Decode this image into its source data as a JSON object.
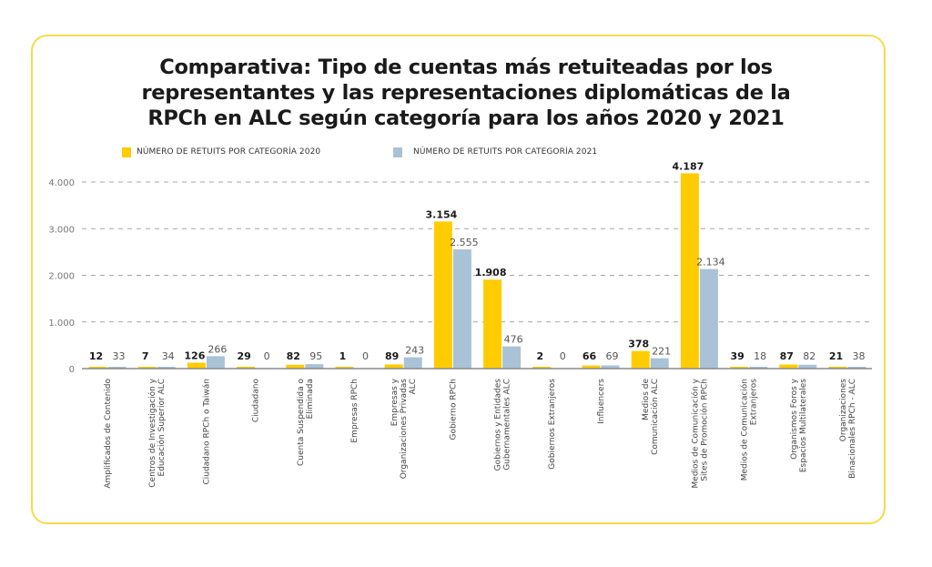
{
  "chart_data": {
    "type": "bar",
    "title_lines": [
      "Comparativa: Tipo de cuentas más retuiteadas por los",
      "representantes y las representaciones diplomáticas de la",
      "RPCh en ALC según categoría para los años 2020 y 2021"
    ],
    "xlabel": "",
    "ylabel": "",
    "ylim": [
      0,
      4000
    ],
    "yticks": [
      0,
      1000,
      2000,
      3000,
      4000
    ],
    "ytick_labels": [
      "0",
      "1.000",
      "2.000",
      "3.000",
      "4.000"
    ],
    "grid": true,
    "legend_position": "top-left",
    "categories": [
      [
        "Amplificados de Contenido"
      ],
      [
        "Centros de Investigación y",
        "Educación Superior ALC"
      ],
      [
        "Ciudadano RPCh o Taiwán"
      ],
      [
        "Ciudadano"
      ],
      [
        "Cuenta Suspendida o",
        "Eliminada"
      ],
      [
        "Empresas RPCh"
      ],
      [
        "Empresas y",
        "Organizaciones Privadas",
        "ALC"
      ],
      [
        "Gobierno RPCh"
      ],
      [
        "Gobiernos y Entidades",
        "Gubernamentales ALC"
      ],
      [
        "Gobiernos Extranjeros"
      ],
      [
        "Influencers"
      ],
      [
        "Medios de",
        "Comunicación ALC"
      ],
      [
        "Medios de Comunicación y",
        "Sites de Promoción RPCh"
      ],
      [
        "Medios de Comunicación",
        "Extranjeros"
      ],
      [
        "Organismos Foros y",
        "Espacios Multilaterales"
      ],
      [
        "Organizaciones",
        "Binacionales RPCh - ALC"
      ]
    ],
    "series": [
      {
        "name": "NÚMERO DE RETUITS POR CATEGORÍA 2020",
        "color": "#FFCC00",
        "values": [
          12,
          7,
          126,
          29,
          82,
          1,
          89,
          3154,
          1908,
          2,
          66,
          378,
          4187,
          39,
          87,
          21
        ],
        "labels": [
          "12",
          "7",
          "126",
          "29",
          "82",
          "1",
          "89",
          "3.154",
          "1.908",
          "2",
          "66",
          "378",
          "4.187",
          "39",
          "87",
          "21"
        ]
      },
      {
        "name": "NÚMERO DE RETUITS POR CATEGORÍA 2021",
        "color": "#A9C2D6",
        "values": [
          33,
          34,
          266,
          0,
          95,
          0,
          243,
          2555,
          476,
          0,
          69,
          221,
          2134,
          18,
          82,
          38
        ],
        "labels": [
          "33",
          "34",
          "266",
          "0",
          "95",
          "0",
          "243",
          "2.555",
          "476",
          "0",
          "69",
          "221",
          "2.134",
          "18",
          "82",
          "38"
        ]
      }
    ]
  },
  "colors": {
    "border": "#F7DB48",
    "grid": "#8a8a8a",
    "axis": "#888888"
  }
}
